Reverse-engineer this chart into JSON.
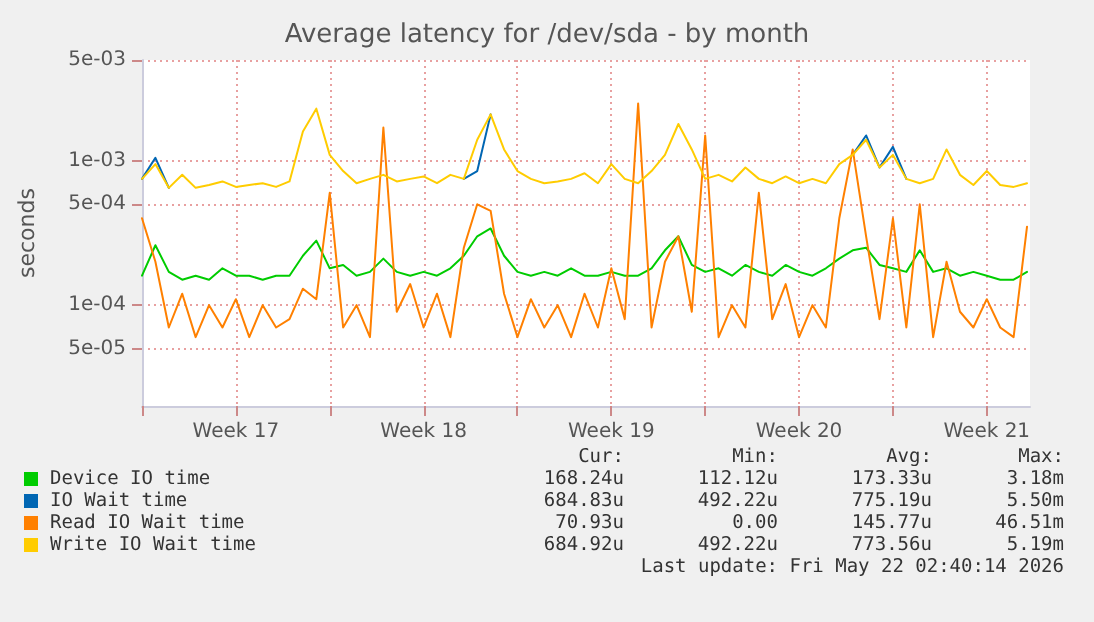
{
  "chart_data": {
    "type": "line",
    "title": "Average latency for /dev/sda - by month",
    "ylabel": "seconds",
    "log": "y",
    "grid": true,
    "legend": "bottom",
    "x": [
      "2026-04-19T00:00",
      "2026-04-19T12:00",
      "2026-04-20T00:00",
      "2026-04-20T12:00",
      "2026-04-21T00:00",
      "2026-04-21T12:00",
      "2026-04-22T00:00",
      "2026-04-22T12:00",
      "2026-04-23T00:00",
      "2026-04-23T12:00",
      "2026-04-24T00:00",
      "2026-04-24T12:00",
      "2026-04-25T00:00",
      "2026-04-25T12:00",
      "2026-04-26T00:00",
      "2026-04-26T12:00",
      "2026-04-27T00:00",
      "2026-04-27T12:00",
      "2026-04-28T00:00",
      "2026-04-28T12:00",
      "2026-04-29T00:00",
      "2026-04-29T12:00",
      "2026-04-30T00:00",
      "2026-04-30T12:00",
      "2026-05-01T00:00",
      "2026-05-01T12:00",
      "2026-05-02T00:00",
      "2026-05-02T12:00",
      "2026-05-03T00:00",
      "2026-05-03T12:00",
      "2026-05-04T00:00",
      "2026-05-04T12:00",
      "2026-05-05T00:00",
      "2026-05-05T12:00",
      "2026-05-06T00:00",
      "2026-05-06T12:00",
      "2026-05-07T00:00",
      "2026-05-07T12:00",
      "2026-05-08T00:00",
      "2026-05-08T12:00",
      "2026-05-09T00:00",
      "2026-05-09T12:00",
      "2026-05-10T00:00",
      "2026-05-10T12:00",
      "2026-05-11T00:00",
      "2026-05-11T12:00",
      "2026-05-12T00:00",
      "2026-05-12T12:00",
      "2026-05-13T00:00",
      "2026-05-13T12:00",
      "2026-05-14T00:00",
      "2026-05-14T12:00",
      "2026-05-15T00:00",
      "2026-05-15T12:00",
      "2026-05-16T00:00",
      "2026-05-16T12:00",
      "2026-05-17T00:00",
      "2026-05-17T12:00",
      "2026-05-18T00:00",
      "2026-05-18T12:00",
      "2026-05-19T00:00",
      "2026-05-19T12:00",
      "2026-05-20T00:00",
      "2026-05-20T12:00",
      "2026-05-21T00:00",
      "2026-05-21T12:00",
      "2026-05-22T00:00"
    ],
    "xlim": [
      "2026-04-19T00:00",
      "2026-05-22T02:40"
    ],
    "xticks": [
      {
        "value": "2026-04-19T00:00",
        "label": null
      },
      {
        "value": "2026-04-22T12:00",
        "label": "Week 17"
      },
      {
        "value": "2026-04-26T00:00",
        "label": null
      },
      {
        "value": "2026-04-29T12:00",
        "label": "Week 18"
      },
      {
        "value": "2026-05-03T00:00",
        "label": null
      },
      {
        "value": "2026-05-06T12:00",
        "label": "Week 19"
      },
      {
        "value": "2026-05-10T00:00",
        "label": null
      },
      {
        "value": "2026-05-13T12:00",
        "label": "Week 20"
      },
      {
        "value": "2026-05-17T00:00",
        "label": null
      },
      {
        "value": "2026-05-20T12:00",
        "label": "Week 21"
      }
    ],
    "ylim": [
      2e-05,
      0.005
    ],
    "yticks": [
      {
        "value": 5e-05,
        "label": "5e-05"
      },
      {
        "value": 0.0001,
        "label": "1e-04"
      },
      {
        "value": 0.0005,
        "label": "5e-04"
      },
      {
        "value": 0.001,
        "label": "1e-03"
      },
      {
        "value": 0.005,
        "label": "5e-03"
      }
    ],
    "series": [
      {
        "name": "Device IO time",
        "color": "#00cc00",
        "values": [
          0.00016,
          0.00026,
          0.00017,
          0.00015,
          0.00016,
          0.00015,
          0.00018,
          0.00016,
          0.00016,
          0.00015,
          0.00016,
          0.00016,
          0.00022,
          0.00028,
          0.00018,
          0.00019,
          0.00016,
          0.00017,
          0.00021,
          0.00017,
          0.00016,
          0.00017,
          0.00016,
          0.00018,
          0.00022,
          0.0003,
          0.00034,
          0.00022,
          0.00017,
          0.00016,
          0.00017,
          0.00016,
          0.00018,
          0.00016,
          0.00016,
          0.00017,
          0.00016,
          0.00016,
          0.00018,
          0.00024,
          0.0003,
          0.00019,
          0.00017,
          0.00018,
          0.00016,
          0.00019,
          0.00017,
          0.00016,
          0.00019,
          0.00017,
          0.00016,
          0.00018,
          0.00021,
          0.00024,
          0.00025,
          0.00019,
          0.00018,
          0.00017,
          0.00024,
          0.00017,
          0.00018,
          0.00016,
          0.00017,
          0.00016,
          0.00015,
          0.00015,
          0.00017
        ]
      },
      {
        "name": "IO Wait time",
        "color": "#0066b3",
        "values": [
          0.00075,
          0.00105,
          0.00065,
          null,
          null,
          null,
          null,
          null,
          null,
          null,
          null,
          null,
          null,
          null,
          null,
          null,
          null,
          null,
          null,
          null,
          null,
          null,
          null,
          null,
          0.00075,
          0.00085,
          0.0021,
          null,
          null,
          null,
          null,
          null,
          null,
          null,
          null,
          null,
          null,
          null,
          null,
          null,
          null,
          null,
          null,
          null,
          null,
          null,
          null,
          null,
          null,
          null,
          null,
          null,
          null,
          0.0011,
          0.0015,
          0.0009,
          0.00125,
          0.00075,
          null,
          null,
          null,
          null,
          null,
          null,
          null,
          null,
          null
        ]
      },
      {
        "name": "Read IO Wait time",
        "color": "#ff8000",
        "values": [
          0.0004,
          0.0002,
          7e-05,
          0.00012,
          6e-05,
          0.0001,
          7e-05,
          0.00011,
          6e-05,
          0.0001,
          7e-05,
          8e-05,
          0.00013,
          0.00011,
          0.0006,
          7e-05,
          0.0001,
          6e-05,
          0.0017,
          9e-05,
          0.00014,
          7e-05,
          0.00012,
          6e-05,
          0.00025,
          0.0005,
          0.00045,
          0.00012,
          6e-05,
          0.00011,
          7e-05,
          0.0001,
          6e-05,
          0.00012,
          7e-05,
          0.00018,
          8e-05,
          0.0025,
          7e-05,
          0.0002,
          0.0003,
          9e-05,
          0.0015,
          6e-05,
          0.0001,
          7e-05,
          0.0006,
          8e-05,
          0.00014,
          6e-05,
          0.0001,
          7e-05,
          0.0004,
          0.0012,
          0.0003,
          8e-05,
          0.0004,
          7e-05,
          0.0005,
          6e-05,
          0.0002,
          9e-05,
          7e-05,
          0.00011,
          7e-05,
          6e-05,
          0.00035
        ]
      },
      {
        "name": "Write IO Wait time",
        "color": "#ffcc00",
        "values": [
          0.00075,
          0.00095,
          0.00065,
          0.0008,
          0.00065,
          0.00068,
          0.00072,
          0.00066,
          0.00068,
          0.0007,
          0.00066,
          0.00072,
          0.0016,
          0.0023,
          0.0011,
          0.00085,
          0.0007,
          0.00075,
          0.0008,
          0.00072,
          0.00075,
          0.00078,
          0.0007,
          0.0008,
          0.00075,
          0.0014,
          0.0021,
          0.0012,
          0.00085,
          0.00075,
          0.0007,
          0.00072,
          0.00075,
          0.00082,
          0.0007,
          0.00095,
          0.00075,
          0.0007,
          0.00085,
          0.0011,
          0.0018,
          0.0012,
          0.00075,
          0.0008,
          0.00072,
          0.0009,
          0.00075,
          0.0007,
          0.00078,
          0.0007,
          0.00075,
          0.0007,
          0.00095,
          0.0011,
          0.0014,
          0.0009,
          0.0011,
          0.00075,
          0.0007,
          0.00075,
          0.0012,
          0.0008,
          0.00068,
          0.00085,
          0.00068,
          0.00066,
          0.0007
        ]
      }
    ],
    "annotations": [
      "Cur:",
      "Min:",
      "Avg:",
      "Max:",
      "168.24u",
      "112.12u",
      "173.33u",
      "3.18m",
      "684.83u",
      "492.22u",
      "775.19u",
      "5.50m",
      "70.93u",
      "0.00",
      "145.77u",
      "46.51m",
      "684.92u",
      "492.22u",
      "773.56u",
      "5.19m",
      "Last update: Fri May 22 02:40:14 2026"
    ]
  }
}
